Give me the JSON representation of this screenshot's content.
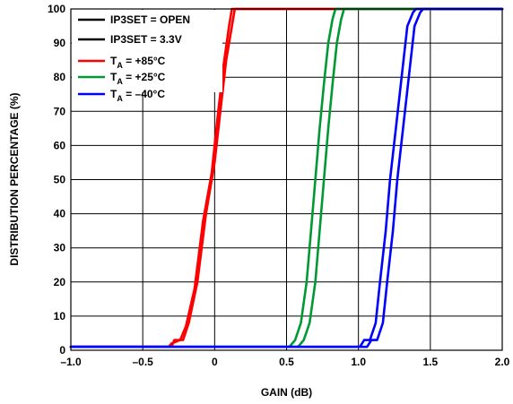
{
  "chart_data": {
    "type": "line",
    "xlabel": "GAIN (dB)",
    "ylabel": "DISTRIBUTION PERCENTAGE (%)",
    "xlim": [
      -1.0,
      2.0
    ],
    "ylim": [
      0,
      100
    ],
    "xticks": [
      -1.0,
      -0.5,
      0,
      0.5,
      1.0,
      1.5,
      2.0
    ],
    "xtick_labels": [
      "–1.0",
      "–0.5",
      "0",
      "0.5",
      "1.0",
      "1.5",
      "2.0"
    ],
    "yticks": [
      0,
      10,
      20,
      30,
      40,
      50,
      60,
      70,
      80,
      90,
      100
    ],
    "ytick_labels": [
      "0",
      "10",
      "20",
      "30",
      "40",
      "50",
      "60",
      "70",
      "80",
      "90",
      "100"
    ],
    "grid": true,
    "legend": {
      "placement": "top-left",
      "entries": [
        {
          "label": "IP3SET = OPEN",
          "color": "#000000"
        },
        {
          "label": "IP3SET = 3.3V",
          "color": "#000000"
        },
        {
          "label_prefix": "T",
          "label_sub": "A",
          "label_suffix": " = +85°C",
          "color": "#ff0000"
        },
        {
          "label_prefix": "T",
          "label_sub": "A",
          "label_suffix": " = +25°C",
          "color": "#009933"
        },
        {
          "label_prefix": "T",
          "label_sub": "A",
          "label_suffix": " = –40°C",
          "color": "#0000ff"
        }
      ]
    },
    "series": [
      {
        "color": "#ff0000",
        "x": [
          -1.0,
          -0.3,
          -0.28,
          -0.22,
          -0.18,
          -0.12,
          -0.06,
          0.0,
          0.04,
          0.08,
          0.12,
          0.14,
          2.0
        ],
        "y": [
          1,
          1,
          3,
          3,
          8,
          20,
          40,
          55,
          70,
          85,
          95,
          100,
          100
        ]
      },
      {
        "color": "#ff0000",
        "x": [
          -1.0,
          -0.32,
          -0.3,
          -0.24,
          -0.2,
          -0.14,
          -0.08,
          -0.02,
          0.02,
          0.06,
          0.1,
          0.12,
          2.0
        ],
        "y": [
          1,
          1,
          2,
          3,
          7,
          18,
          38,
          52,
          68,
          83,
          95,
          100,
          100
        ]
      },
      {
        "color": "#009933",
        "x": [
          -1.0,
          0.52,
          0.56,
          0.6,
          0.64,
          0.67,
          0.7,
          0.73,
          0.76,
          0.79,
          0.82,
          0.84,
          2.0
        ],
        "y": [
          1,
          1,
          3,
          8,
          20,
          35,
          50,
          65,
          78,
          90,
          97,
          100,
          100
        ]
      },
      {
        "color": "#009933",
        "x": [
          -1.0,
          0.58,
          0.62,
          0.66,
          0.7,
          0.73,
          0.76,
          0.79,
          0.82,
          0.85,
          0.88,
          0.9,
          2.0
        ],
        "y": [
          1,
          1,
          3,
          8,
          20,
          35,
          50,
          65,
          78,
          90,
          97,
          100,
          100
        ]
      },
      {
        "color": "#0000ff",
        "x": [
          -1.0,
          1.01,
          1.04,
          1.08,
          1.12,
          1.15,
          1.19,
          1.22,
          1.26,
          1.3,
          1.34,
          1.38,
          1.4,
          2.0
        ],
        "y": [
          1,
          1,
          3,
          3,
          8,
          20,
          35,
          50,
          65,
          80,
          95,
          99,
          100,
          100
        ]
      },
      {
        "color": "#0000ff",
        "x": [
          -1.0,
          1.06,
          1.09,
          1.13,
          1.17,
          1.2,
          1.24,
          1.27,
          1.31,
          1.35,
          1.39,
          1.43,
          1.45,
          2.0
        ],
        "y": [
          1,
          1,
          3,
          3,
          8,
          20,
          35,
          50,
          65,
          80,
          95,
          99,
          100,
          100
        ]
      }
    ]
  }
}
